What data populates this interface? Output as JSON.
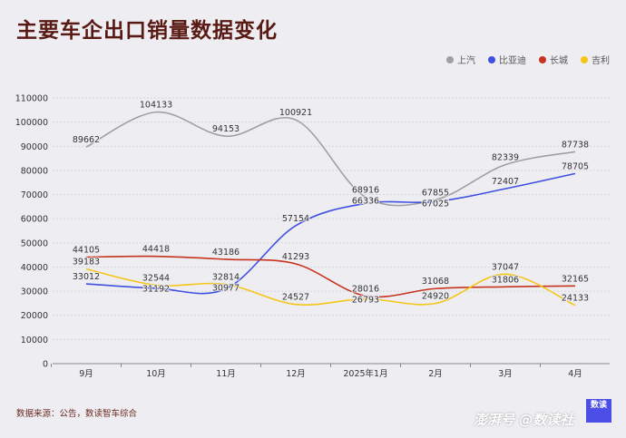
{
  "title": "主要车企出口销量数据变化",
  "source": "数据来源：公告，数读智车综合",
  "watermark": "澎湃号 @数读社",
  "logo_text": "数读",
  "chart_data": {
    "type": "line",
    "title": "主要车企出口销量数据变化",
    "categories": [
      "9月",
      "10月",
      "11月",
      "12月",
      "2025年1月",
      "2月",
      "3月",
      "4月"
    ],
    "ylim": [
      0,
      110000
    ],
    "yticks": [
      0,
      10000,
      20000,
      30000,
      40000,
      50000,
      60000,
      70000,
      80000,
      90000,
      100000,
      110000
    ],
    "grid": true,
    "legend_position": "top-right",
    "series": [
      {
        "name": "上汽",
        "color": "#a0a0a0",
        "values": [
          89662,
          104133,
          94153,
          100921,
          68916,
          67855,
          82339,
          87738
        ]
      },
      {
        "name": "比亚迪",
        "color": "#3f4fe0",
        "values": [
          33012,
          31192,
          30977,
          57154,
          66336,
          67025,
          72407,
          78705
        ]
      },
      {
        "name": "长城",
        "color": "#c8321e",
        "values": [
          44105,
          44418,
          43186,
          41293,
          28016,
          31068,
          31806,
          32165
        ]
      },
      {
        "name": "吉利",
        "color": "#f5c518",
        "values": [
          39183,
          32544,
          32814,
          24527,
          26793,
          24920,
          37047,
          24133
        ]
      }
    ]
  }
}
